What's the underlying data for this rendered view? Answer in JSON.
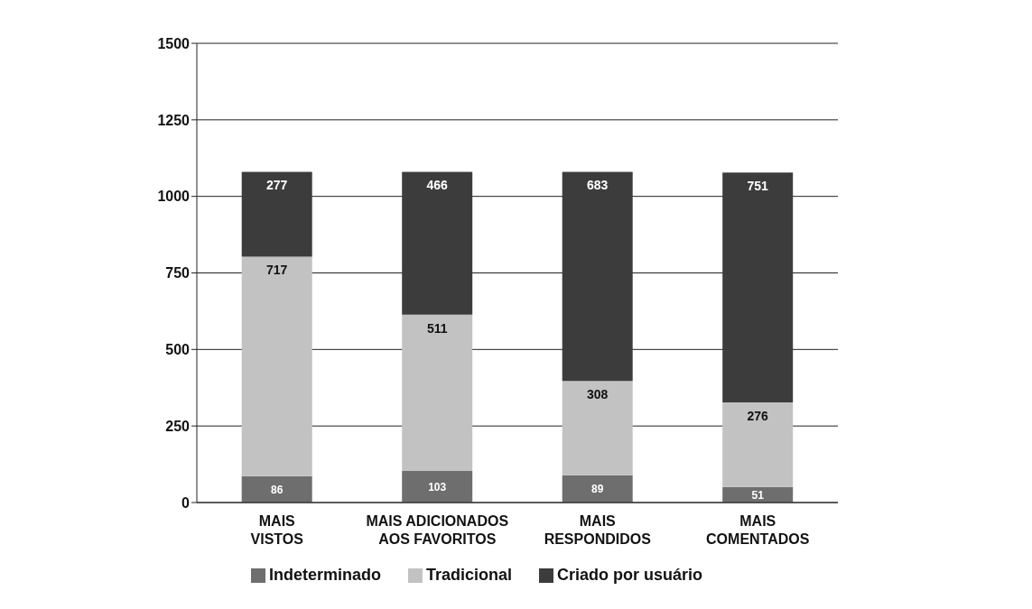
{
  "chart_data": {
    "type": "bar",
    "stacked": true,
    "categories": [
      "MAIS VISTOS",
      "MAIS ADICIONADOS AOS FAVORITOS",
      "MAIS RESPONDIDOS",
      "MAIS COMENTADOS"
    ],
    "series": [
      {
        "name": "Indeterminado",
        "color": "#6e6e6e",
        "values": [
          86,
          103,
          89,
          51
        ]
      },
      {
        "name": "Tradicional",
        "color": "#c2c2c2",
        "values": [
          717,
          511,
          308,
          276
        ]
      },
      {
        "name": "Criado por usuário",
        "color": "#3c3c3c",
        "values": [
          277,
          466,
          683,
          751
        ]
      }
    ],
    "ylim": [
      0,
      1500
    ],
    "yticks": [
      0,
      250,
      500,
      750,
      1000,
      1250,
      1500
    ],
    "grid": "y",
    "legend": "bottom",
    "data_labels": true
  }
}
